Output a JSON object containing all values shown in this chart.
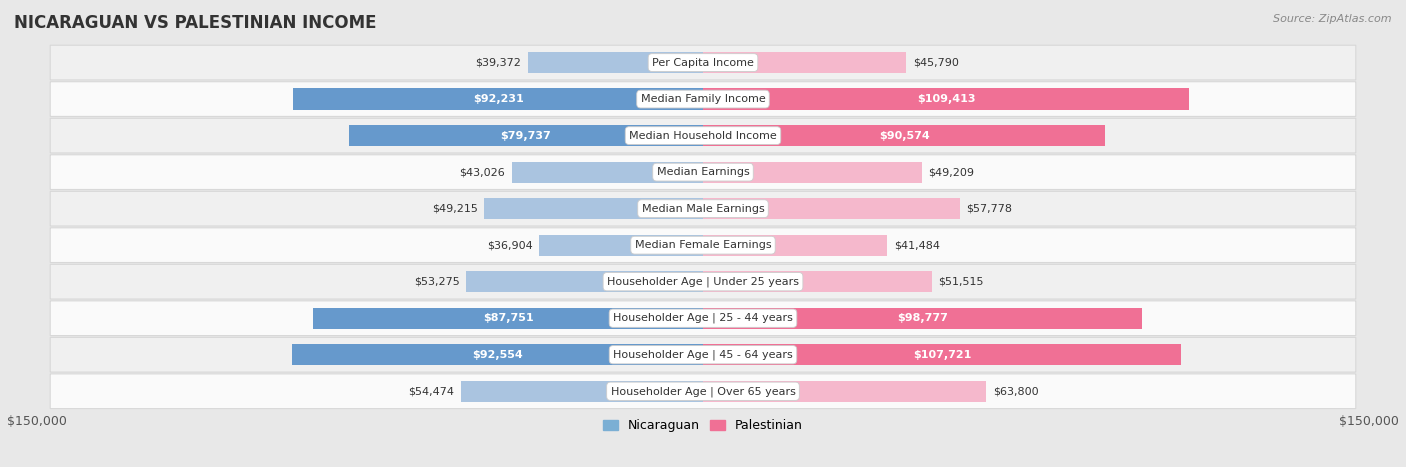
{
  "title": "NICARAGUAN VS PALESTINIAN INCOME",
  "source": "Source: ZipAtlas.com",
  "categories": [
    "Per Capita Income",
    "Median Family Income",
    "Median Household Income",
    "Median Earnings",
    "Median Male Earnings",
    "Median Female Earnings",
    "Householder Age | Under 25 years",
    "Householder Age | 25 - 44 years",
    "Householder Age | 45 - 64 years",
    "Householder Age | Over 65 years"
  ],
  "nicaraguan_values": [
    39372,
    92231,
    79737,
    43026,
    49215,
    36904,
    53275,
    87751,
    92554,
    54474
  ],
  "palestinian_values": [
    45790,
    109413,
    90574,
    49209,
    57778,
    41484,
    51515,
    98777,
    107721,
    63800
  ],
  "nicaraguan_labels": [
    "$39,372",
    "$92,231",
    "$79,737",
    "$43,026",
    "$49,215",
    "$36,904",
    "$53,275",
    "$87,751",
    "$92,554",
    "$54,474"
  ],
  "palestinian_labels": [
    "$45,790",
    "$109,413",
    "$90,574",
    "$49,209",
    "$57,778",
    "$41,484",
    "$51,515",
    "$98,777",
    "$107,721",
    "$63,800"
  ],
  "nicaraguan_color_light": "#aac4e0",
  "nicaraguan_color_dark": "#6699cc",
  "palestinian_color_light": "#f5b8cc",
  "palestinian_color_dark": "#f07095",
  "max_value": 150000,
  "bar_height": 0.58,
  "row_bg_even": "#f0f0f0",
  "row_bg_odd": "#fafafa",
  "row_border_color": "#d8d8d8",
  "fig_bg": "#e8e8e8",
  "legend_nicaraguan_color": "#7bafd4",
  "legend_palestinian_color": "#f07095",
  "label_threshold": 65000,
  "outside_label_fontsize": 8.0,
  "inside_label_fontsize": 8.0,
  "category_fontsize": 8.0,
  "title_fontsize": 12,
  "axis_label_fontsize": 9
}
